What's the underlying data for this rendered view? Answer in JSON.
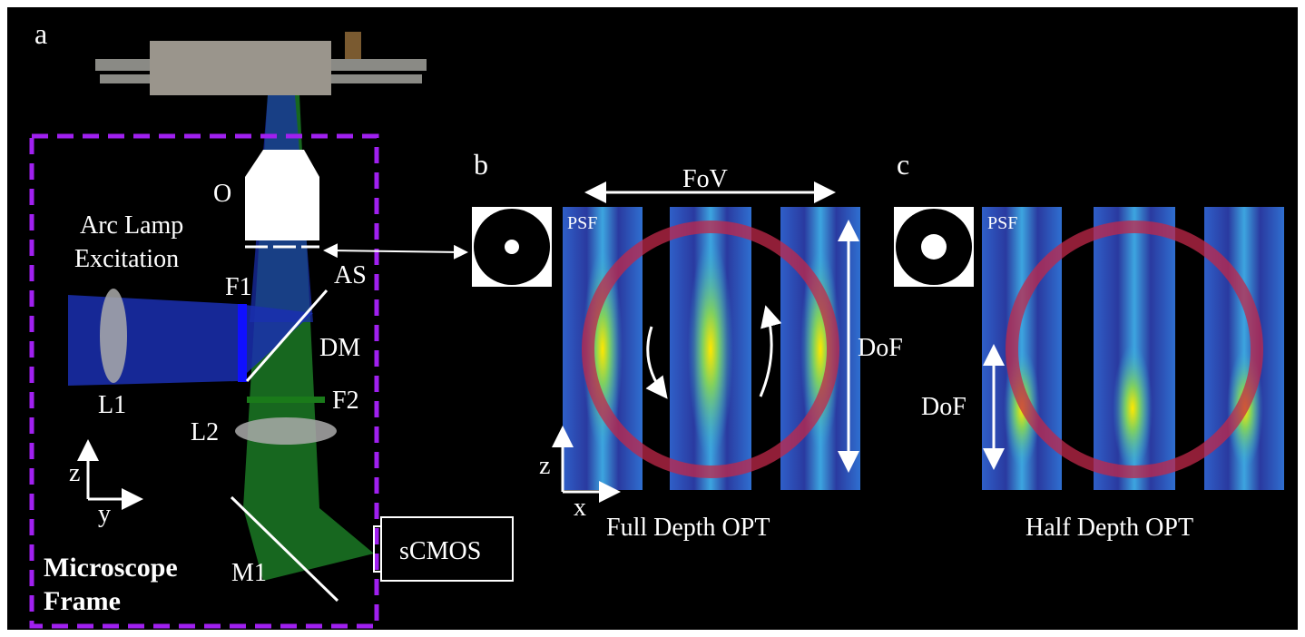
{
  "panel_a": {
    "label": "a",
    "arc_lamp": [
      "Arc Lamp",
      "Excitation"
    ],
    "objective": "O",
    "aperture_stop": "AS",
    "filter1": "F1",
    "dichroic": "DM",
    "lens1": "L1",
    "filter2": "F2",
    "lens2": "L2",
    "axis_z": "z",
    "axis_y": "y",
    "mirror": "M1",
    "camera": "sCMOS",
    "frame": [
      "Microscope",
      "Frame"
    ]
  },
  "panel_b": {
    "label": "b",
    "fov": "FoV",
    "psf": "PSF",
    "dof": "DoF",
    "axis_z": "z",
    "axis_x": "x",
    "caption": "Full Depth OPT"
  },
  "panel_c": {
    "label": "c",
    "psf": "PSF",
    "dof": "DoF",
    "caption": "Half Depth OPT"
  }
}
